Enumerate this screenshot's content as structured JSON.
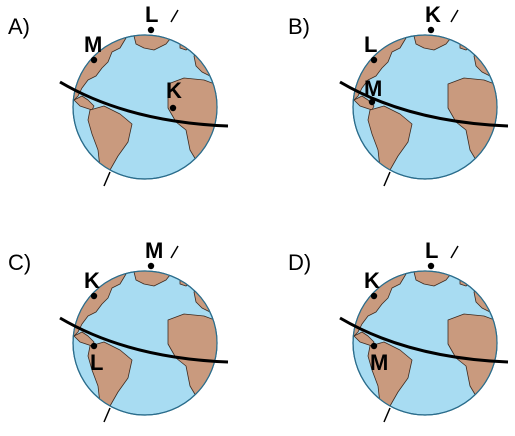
{
  "colors": {
    "ocean": "#a8dcf2",
    "ocean_edge": "#2b6d8c",
    "land": "#c99a7e",
    "land_edge": "#3d2a20",
    "equator": "#000000",
    "axis": "#000000"
  },
  "options": [
    {
      "label": "A)",
      "points": [
        {
          "name": "L",
          "place": "greenland-north"
        },
        {
          "name": "M",
          "place": "north-america-east"
        },
        {
          "name": "K",
          "place": "north-africa"
        }
      ]
    },
    {
      "label": "B)",
      "points": [
        {
          "name": "K",
          "place": "greenland-north"
        },
        {
          "name": "L",
          "place": "north-america-east"
        },
        {
          "name": "M",
          "place": "central-america"
        }
      ]
    },
    {
      "label": "C)",
      "points": [
        {
          "name": "M",
          "place": "greenland-north"
        },
        {
          "name": "K",
          "place": "north-america-east"
        },
        {
          "name": "L",
          "place": "south-america-north"
        }
      ]
    },
    {
      "label": "D)",
      "points": [
        {
          "name": "L",
          "place": "greenland-north"
        },
        {
          "name": "K",
          "place": "north-america-east"
        },
        {
          "name": "M",
          "place": "south-america-north"
        }
      ]
    }
  ]
}
